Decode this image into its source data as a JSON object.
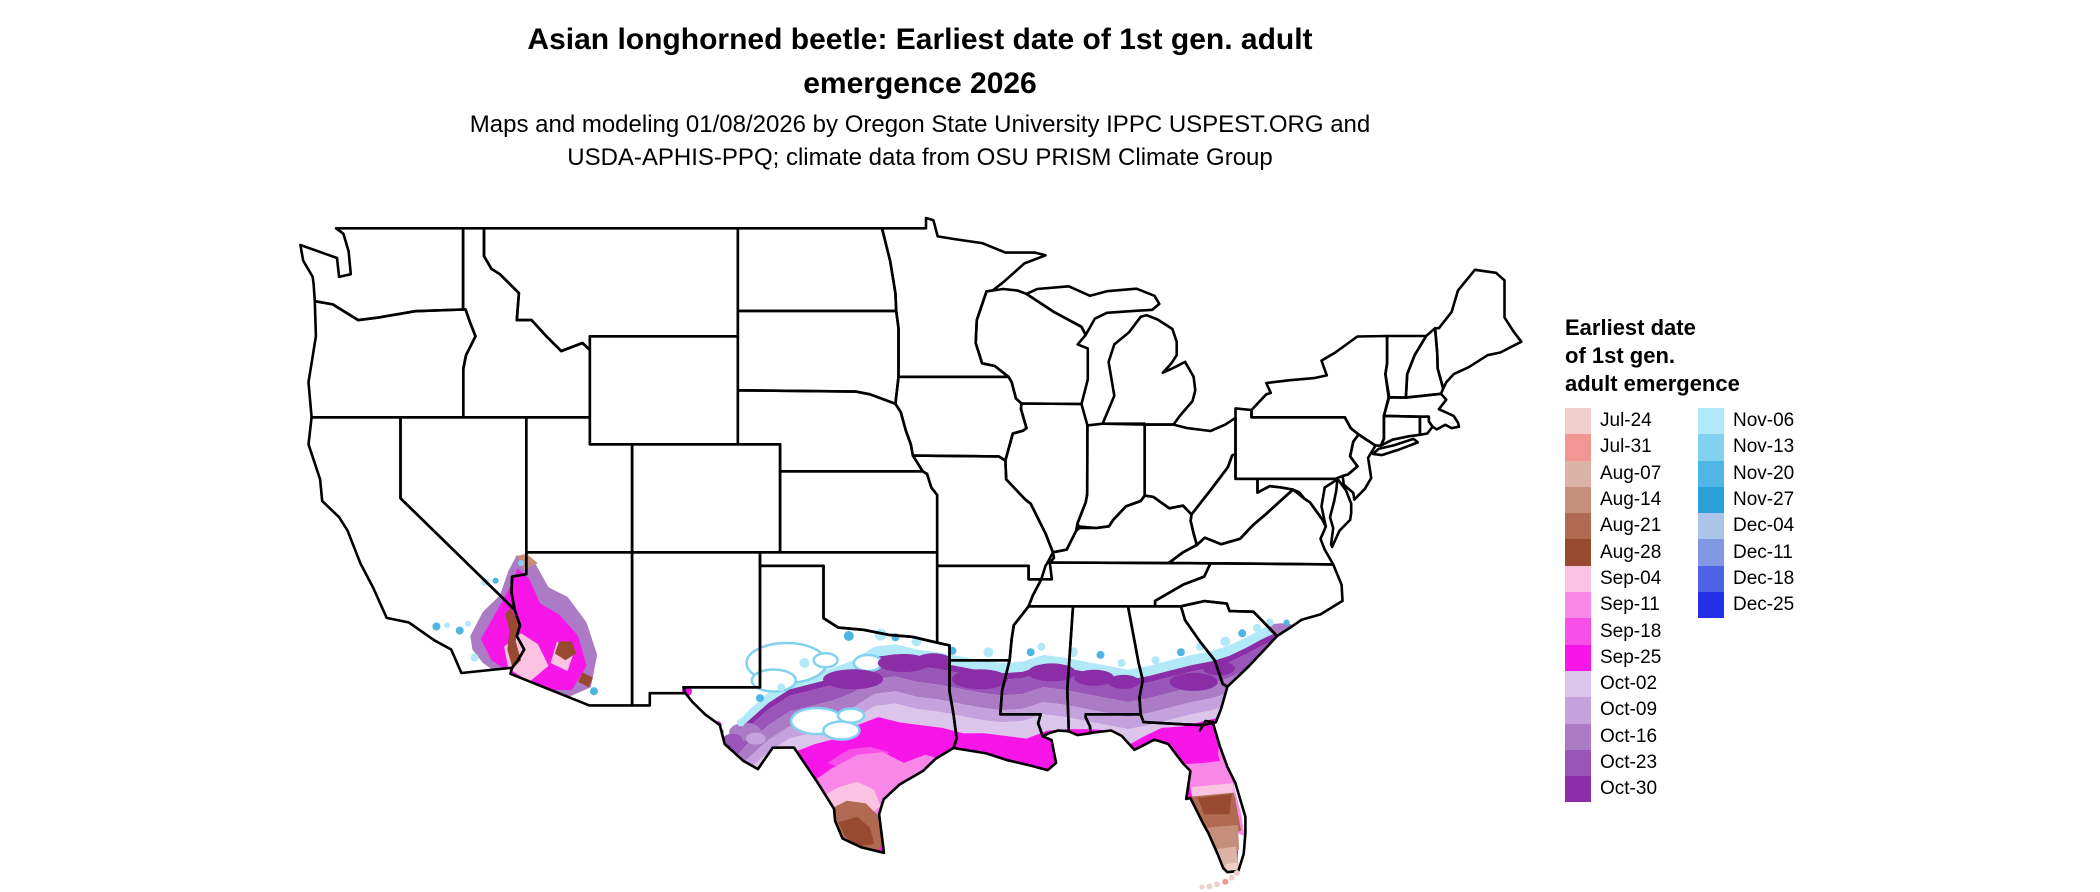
{
  "title": {
    "line1": "Asian longhorned beetle: Earliest date of 1st gen. adult",
    "line2": "emergence 2026"
  },
  "subtitle": {
    "line1": "Maps and modeling 01/08/2026 by Oregon State University IPPC USPEST.ORG and",
    "line2": "USDA-APHIS-PPQ; climate data from OSU PRISM Climate Group"
  },
  "legend": {
    "title_line1": "Earliest date",
    "title_line2": "of 1st gen.",
    "title_line3": "adult emergence",
    "column1": [
      {
        "label": "Jul-24",
        "color": "#f0cfcb"
      },
      {
        "label": "Jul-31",
        "color": "#f19693"
      },
      {
        "label": "Aug-07",
        "color": "#dcb3a7"
      },
      {
        "label": "Aug-14",
        "color": "#c78e7c"
      },
      {
        "label": "Aug-21",
        "color": "#b06a52"
      },
      {
        "label": "Aug-28",
        "color": "#974a2f"
      },
      {
        "label": "Sep-04",
        "color": "#fbc3e1"
      },
      {
        "label": "Sep-11",
        "color": "#f987e8"
      },
      {
        "label": "Sep-18",
        "color": "#f750e8"
      },
      {
        "label": "Sep-25",
        "color": "#f815e8"
      },
      {
        "label": "Oct-02",
        "color": "#dcc5ea"
      },
      {
        "label": "Oct-09",
        "color": "#c5a1dd"
      },
      {
        "label": "Oct-16",
        "color": "#ab7bc6"
      },
      {
        "label": "Oct-23",
        "color": "#9a55b8"
      },
      {
        "label": "Oct-30",
        "color": "#8a2da6"
      }
    ],
    "column2": [
      {
        "label": "Nov-06",
        "color": "#b2e9f8"
      },
      {
        "label": "Nov-13",
        "color": "#82d2ef"
      },
      {
        "label": "Nov-20",
        "color": "#4fb5e4"
      },
      {
        "label": "Nov-27",
        "color": "#2aa0d8"
      },
      {
        "label": "Dec-04",
        "color": "#abc4e8"
      },
      {
        "label": "Dec-11",
        "color": "#8197e3"
      },
      {
        "label": "Dec-18",
        "color": "#4e63e3"
      },
      {
        "label": "Dec-25",
        "color": "#2430e8"
      }
    ]
  },
  "chart_data": {
    "type": "choropleth-map",
    "region": "Contiguous United States with state borders",
    "variable": "Earliest date of 1st generation adult emergence, 2026",
    "categories": [
      "Jul-24",
      "Jul-31",
      "Aug-07",
      "Aug-14",
      "Aug-21",
      "Aug-28",
      "Sep-04",
      "Sep-11",
      "Sep-18",
      "Sep-25",
      "Oct-02",
      "Oct-09",
      "Oct-16",
      "Oct-23",
      "Oct-30",
      "Nov-06",
      "Nov-13",
      "Nov-20",
      "Nov-27",
      "Dec-04",
      "Dec-11",
      "Dec-18",
      "Dec-25"
    ],
    "observations": [
      {
        "area": "southern tip of Texas (Rio Grande Valley)",
        "dates": "Aug-21 to Aug-28"
      },
      {
        "area": "central and southern Florida",
        "dates": "Jul-24 to Aug-28, earliest at the tip and Keys"
      },
      {
        "area": "Texas and Louisiana Gulf Coast, north Florida",
        "dates": "Sep-04 to Sep-25 (magenta belt)"
      },
      {
        "area": "band from central Texas across MS/AL/GA to coastal South Carolina",
        "dates": "Oct-02 to Oct-30 with Nov-06 to Nov-27 fringe on its northern edge"
      },
      {
        "area": "lower Colorado River valley, southern Arizona and southeastern California",
        "dates": "Aug-21 to Nov-27 mosaic"
      },
      {
        "area": "remainder of the United States",
        "dates": "no emergence shown (white)"
      }
    ]
  }
}
